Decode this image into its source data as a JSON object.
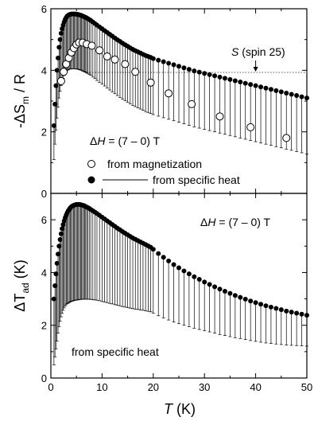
{
  "chart_data": [
    {
      "type": "scatter",
      "panel": "top",
      "ylabel": {
        "prefix": "-ΔS",
        "sub": "m",
        "suffix": " / R"
      },
      "xlim": [
        0,
        50
      ],
      "ylim": [
        0,
        6
      ],
      "yticks": [
        "0",
        "2",
        "4",
        "6"
      ],
      "xticks": [
        "0",
        "10",
        "20",
        "30",
        "40",
        "50"
      ],
      "reference_line": {
        "y": 3.93,
        "label_italic": "S",
        "label_rest": " (spin 25)",
        "arrow_x": 40
      },
      "annotation": {
        "prefix": "Δ",
        "italic": "H",
        "rest": " = (7 – 0) T"
      },
      "legend": {
        "magnetization": "from magnetization",
        "specific_heat": "from specific heat"
      },
      "series": [
        {
          "name": "from specific heat",
          "marker": "filled-circle",
          "x": [
            0.6,
            0.8,
            1.0,
            1.2,
            1.4,
            1.6,
            1.8,
            2.0,
            2.2,
            2.4,
            2.6,
            2.8,
            3.0,
            3.2,
            3.4,
            3.6,
            3.8,
            4.0,
            4.2,
            4.4,
            4.6,
            4.8,
            5.0,
            5.2,
            5.4,
            5.6,
            5.8,
            6.0,
            6.2,
            6.4,
            6.6,
            6.8,
            7.0,
            7.2,
            7.5,
            7.8,
            8.2,
            8.6,
            9.0,
            9.5,
            10,
            10.5,
            11,
            11.5,
            12,
            12.5,
            13,
            13.5,
            14,
            14.5,
            15,
            15.5,
            16,
            16.5,
            17,
            17.5,
            18,
            18.5,
            19,
            19.5,
            20,
            21,
            22,
            23,
            24,
            25,
            26,
            27,
            28,
            29,
            30,
            31,
            32,
            33,
            34,
            35,
            36,
            37,
            38,
            39,
            40,
            41,
            42,
            43,
            44,
            45,
            46,
            47,
            48,
            49,
            50
          ],
          "y": [
            2.2,
            2.9,
            3.5,
            4.0,
            4.4,
            4.75,
            5.0,
            5.2,
            5.35,
            5.47,
            5.57,
            5.65,
            5.72,
            5.76,
            5.79,
            5.81,
            5.82,
            5.83,
            5.83,
            5.83,
            5.83,
            5.83,
            5.82,
            5.82,
            5.81,
            5.8,
            5.79,
            5.78,
            5.76,
            5.75,
            5.73,
            5.72,
            5.7,
            5.68,
            5.65,
            5.62,
            5.57,
            5.52,
            5.47,
            5.41,
            5.35,
            5.29,
            5.23,
            5.17,
            5.11,
            5.05,
            4.99,
            4.94,
            4.88,
            4.83,
            4.78,
            4.73,
            4.68,
            4.64,
            4.6,
            4.56,
            4.52,
            4.48,
            4.45,
            4.42,
            4.38,
            4.33,
            4.28,
            4.23,
            4.18,
            4.13,
            4.08,
            4.03,
            3.98,
            3.94,
            3.9,
            3.86,
            3.82,
            3.78,
            3.74,
            3.7,
            3.66,
            3.62,
            3.58,
            3.54,
            3.5,
            3.46,
            3.42,
            3.38,
            3.34,
            3.3,
            3.26,
            3.22,
            3.18,
            3.14,
            3.1
          ],
          "error_lower": [
            1.1,
            1.3,
            1.45,
            1.55,
            1.6,
            1.65,
            1.68,
            1.7,
            1.72,
            1.73,
            1.74,
            1.75,
            1.76,
            1.76,
            1.77,
            1.77,
            1.78,
            1.78,
            1.78,
            1.78,
            1.78,
            1.78,
            1.78,
            1.78,
            1.78,
            1.78,
            1.78,
            1.78,
            1.78,
            1.78,
            1.78,
            1.78,
            1.78,
            1.78,
            1.78,
            1.78,
            1.79,
            1.79,
            1.8,
            1.8,
            1.8,
            1.8,
            1.81,
            1.81,
            1.81,
            1.81,
            1.81,
            1.82,
            1.82,
            1.82,
            1.82,
            1.82,
            1.82,
            1.82,
            1.82,
            1.82,
            1.82,
            1.82,
            1.82,
            1.82,
            1.82,
            1.82,
            1.82,
            1.82,
            1.82,
            1.82,
            1.82,
            1.82,
            1.82,
            1.82,
            1.82,
            1.82,
            1.82,
            1.82,
            1.82,
            1.82,
            1.82,
            1.82,
            1.82,
            1.82,
            1.82,
            1.82,
            1.82,
            1.82,
            1.82,
            1.82,
            1.82,
            1.82,
            1.82,
            1.82,
            1.82
          ]
        },
        {
          "name": "from magnetization",
          "marker": "open-circle",
          "x": [
            2.0,
            2.5,
            3.0,
            3.5,
            4.0,
            4.5,
            5.0,
            5.5,
            6.2,
            7.0,
            8.0,
            9.5,
            11.0,
            12.5,
            14.5,
            16.5,
            19.5,
            23.0,
            27.5,
            33.0,
            39.0,
            46.0
          ],
          "y": [
            3.65,
            3.95,
            4.2,
            4.4,
            4.58,
            4.72,
            4.84,
            4.9,
            4.9,
            4.85,
            4.8,
            4.65,
            4.45,
            4.35,
            4.2,
            3.95,
            3.6,
            3.25,
            2.9,
            2.5,
            2.15,
            1.8
          ]
        }
      ]
    },
    {
      "type": "scatter",
      "panel": "bottom",
      "ylabel": {
        "prefix": "ΔT",
        "sub": "ad",
        "suffix": " (K)"
      },
      "xlabel": {
        "italic": "T",
        "rest": " (K)"
      },
      "xlim": [
        0,
        50
      ],
      "ylim": [
        0,
        7
      ],
      "yticks": [
        "0",
        "2",
        "4",
        "6"
      ],
      "xticks": [
        "0",
        "10",
        "20",
        "30",
        "40",
        "50"
      ],
      "annotation": {
        "prefix": "Δ",
        "italic": "H",
        "rest": " = (7 – 0) T"
      },
      "footnote": "from specific heat",
      "series": [
        {
          "name": "from specific heat",
          "marker": "filled-circle",
          "x": [
            0.6,
            0.8,
            1.0,
            1.2,
            1.4,
            1.6,
            1.8,
            2.0,
            2.2,
            2.4,
            2.6,
            2.8,
            3.0,
            3.2,
            3.4,
            3.6,
            3.8,
            4.0,
            4.2,
            4.4,
            4.6,
            4.8,
            5.0,
            5.2,
            5.4,
            5.6,
            5.8,
            6.0,
            6.2,
            6.4,
            6.6,
            6.8,
            7.0,
            7.2,
            7.5,
            7.8,
            8.2,
            8.6,
            9.0,
            9.5,
            10,
            10.5,
            11,
            11.5,
            12,
            12.5,
            13,
            13.5,
            14,
            14.5,
            15,
            15.5,
            16,
            16.5,
            17,
            17.5,
            18,
            18.5,
            19,
            19.5,
            20,
            21,
            22,
            23,
            24,
            25,
            26,
            27,
            28,
            29,
            30,
            31,
            32,
            33,
            34,
            35,
            36,
            37,
            38,
            39,
            40,
            41,
            42,
            43,
            44,
            45,
            46,
            47,
            48,
            49,
            50
          ],
          "y": [
            3.0,
            3.5,
            3.95,
            4.35,
            4.7,
            5.0,
            5.25,
            5.47,
            5.66,
            5.82,
            5.96,
            6.08,
            6.18,
            6.27,
            6.34,
            6.4,
            6.45,
            6.49,
            6.52,
            6.54,
            6.56,
            6.57,
            6.58,
            6.58,
            6.58,
            6.58,
            6.57,
            6.56,
            6.55,
            6.54,
            6.52,
            6.5,
            6.48,
            6.46,
            6.43,
            6.39,
            6.34,
            6.29,
            6.24,
            6.17,
            6.1,
            6.03,
            5.96,
            5.89,
            5.82,
            5.75,
            5.68,
            5.62,
            5.55,
            5.49,
            5.43,
            5.37,
            5.31,
            5.26,
            5.21,
            5.16,
            5.11,
            5.06,
            5.01,
            4.96,
            4.88,
            4.72,
            4.58,
            4.44,
            4.3,
            4.18,
            4.06,
            3.95,
            3.84,
            3.74,
            3.64,
            3.55,
            3.46,
            3.37,
            3.29,
            3.21,
            3.13,
            3.06,
            2.99,
            2.92,
            2.86,
            2.8,
            2.74,
            2.69,
            2.64,
            2.59,
            2.54,
            2.5,
            2.46,
            2.42,
            2.38
          ],
          "error_lower": [
            2.5,
            2.7,
            2.85,
            2.95,
            3.0,
            3.05,
            3.1,
            3.15,
            3.2,
            3.25,
            3.3,
            3.35,
            3.4,
            3.45,
            3.5,
            3.53,
            3.56,
            3.58,
            3.6,
            3.61,
            3.62,
            3.62,
            3.62,
            3.62,
            3.61,
            3.6,
            3.59,
            3.58,
            3.56,
            3.55,
            3.53,
            3.51,
            3.49,
            3.47,
            3.44,
            3.41,
            3.37,
            3.33,
            3.29,
            3.24,
            3.2,
            3.15,
            3.1,
            3.06,
            3.01,
            2.97,
            2.92,
            2.88,
            2.84,
            2.8,
            2.76,
            2.72,
            2.68,
            2.65,
            2.61,
            2.58,
            2.54,
            2.51,
            2.48,
            2.45,
            2.42,
            2.36,
            2.3,
            2.24,
            2.18,
            2.12,
            2.06,
            2.0,
            1.95,
            1.9,
            1.85,
            1.8,
            1.76,
            1.72,
            1.68,
            1.64,
            1.6,
            1.56,
            1.53,
            1.5,
            1.47,
            1.44,
            1.41,
            1.38,
            1.35,
            1.32,
            1.29,
            1.26,
            1.23,
            1.2,
            1.17
          ]
        }
      ]
    }
  ]
}
